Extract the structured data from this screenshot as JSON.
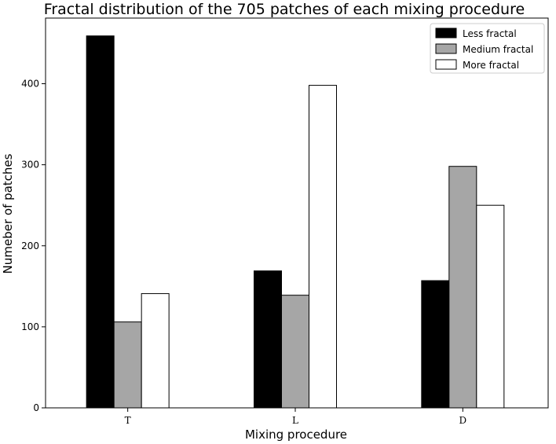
{
  "chart_data": {
    "type": "bar",
    "title": "Fractal distribution of the 705 patches of each mixing procedure",
    "xlabel": "Mixing procedure",
    "ylabel": "Numeber of patches",
    "categories": [
      "T",
      "L",
      "D"
    ],
    "series": [
      {
        "name": "Less fractal",
        "values": [
          459,
          169,
          157
        ],
        "color": "#000000"
      },
      {
        "name": "Medium fractal",
        "values": [
          106,
          139,
          298
        ],
        "color": "#a6a6a6"
      },
      {
        "name": "More fractal",
        "values": [
          141,
          398,
          250
        ],
        "color": "#ffffff"
      }
    ],
    "ylim": [
      0,
      481
    ],
    "yticks": [
      0,
      100,
      200,
      300,
      400
    ],
    "grid": false,
    "legend_position": "top-right"
  }
}
